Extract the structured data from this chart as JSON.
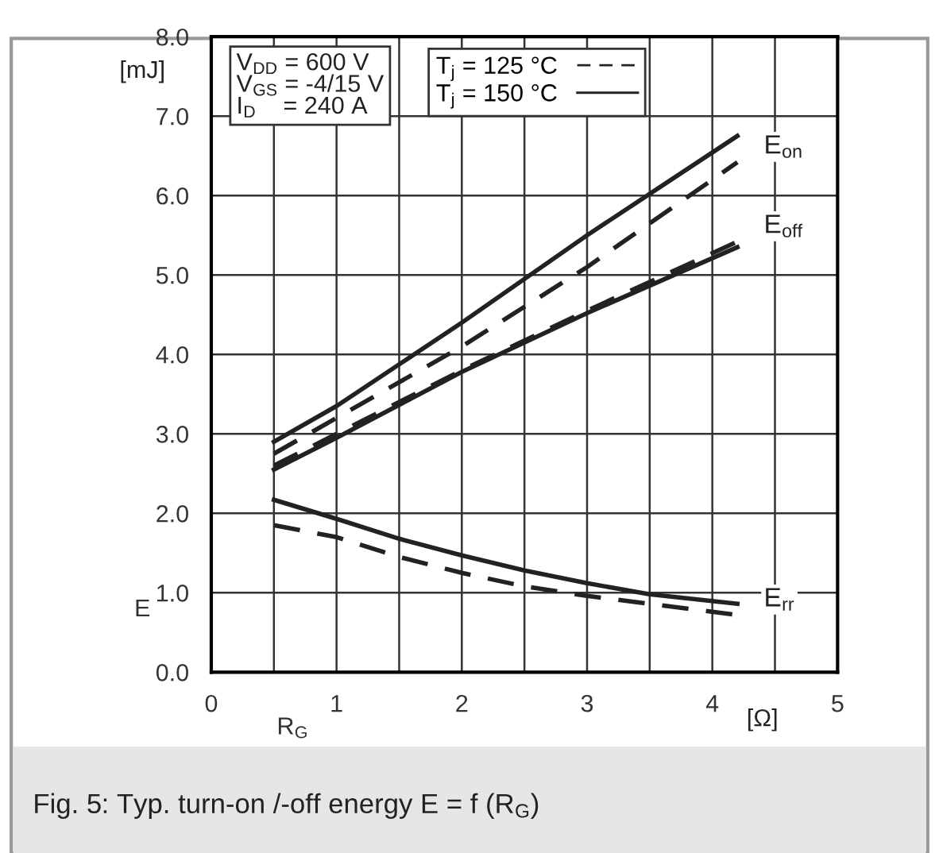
{
  "chart_data": {
    "type": "line",
    "title": "Fig. 5: Typ. turn-on /-off energy E = f (R$_{G}$)",
    "xlabel": "R$_{G}$",
    "ylabel": "E",
    "xlim": [
      0,
      5
    ],
    "ylim": [
      0,
      8
    ],
    "xticks": [
      0,
      {
        "value": 0.5,
        "label": null
      },
      1,
      {
        "value": 1.5,
        "label": null
      },
      2,
      {
        "value": 2.5,
        "label": null
      },
      3,
      {
        "value": 3.5,
        "label": null
      },
      4,
      {
        "value": 4.5,
        "label": null
      },
      5
    ],
    "yticks": [
      {
        "value": 0,
        "label": "0.0"
      },
      {
        "value": 1,
        "label": "1.0"
      },
      {
        "value": 2,
        "label": "2.0"
      },
      {
        "value": 3,
        "label": "3.0"
      },
      {
        "value": 4,
        "label": "4.0"
      },
      {
        "value": 5,
        "label": "5.0"
      },
      {
        "value": 6,
        "label": "6.0"
      },
      {
        "value": 7,
        "label": "7.0"
      },
      {
        "value": 8,
        "label": "8.0"
      }
    ],
    "grid": true,
    "legend": "top",
    "marker": "none",
    "series": [
      {
        "name": "T$_{j}$ = 125 °C",
        "color": "#222222",
        "line_style": "dashed",
        "x": [
          0.5,
          1,
          2,
          3,
          4.2
        ],
        "values": [
          2.75,
          3.2,
          4.1,
          5.1,
          6.42
        ]
      },
      {
        "name": "T$_{j}$ = 150 °C",
        "color": "#222222",
        "line_style": "solid",
        "x": [
          0.5,
          1,
          2,
          3,
          4.2
        ],
        "values": [
          2.9,
          3.35,
          4.4,
          5.5,
          6.75
        ]
      },
      {
        "color": "#222222",
        "line_style": "dashed",
        "x": [
          0.5,
          1,
          2,
          3,
          4.2
        ],
        "values": [
          2.6,
          3.0,
          3.8,
          4.55,
          5.42
        ]
      },
      {
        "color": "#222222",
        "line_style": "solid",
        "x": [
          0.5,
          1,
          2,
          3,
          4.2
        ],
        "values": [
          2.55,
          2.95,
          3.78,
          4.52,
          5.35
        ]
      },
      {
        "color": "#222222",
        "line_style": "dashed",
        "x": [
          0.5,
          1,
          1.5,
          2,
          2.5,
          3,
          3.5,
          4.2
        ],
        "values": [
          1.85,
          1.7,
          1.45,
          1.25,
          1.08,
          0.96,
          0.86,
          0.72
        ]
      },
      {
        "color": "#222222",
        "line_style": "solid",
        "x": [
          0.5,
          1,
          1.5,
          2,
          2.5,
          3,
          3.5,
          4.2
        ],
        "values": [
          2.17,
          1.93,
          1.68,
          1.47,
          1.28,
          1.12,
          0.98,
          0.86
        ]
      }
    ],
    "annotations": [
      "V$_{DD}$ = 600 V\nV$_{GS}$ = -4/15 V\nI$_{D}$    = 240 A",
      "[mJ]",
      "[Ω]",
      "E$_{on}$",
      "E$_{off}$",
      "E$_{rr}$"
    ]
  }
}
